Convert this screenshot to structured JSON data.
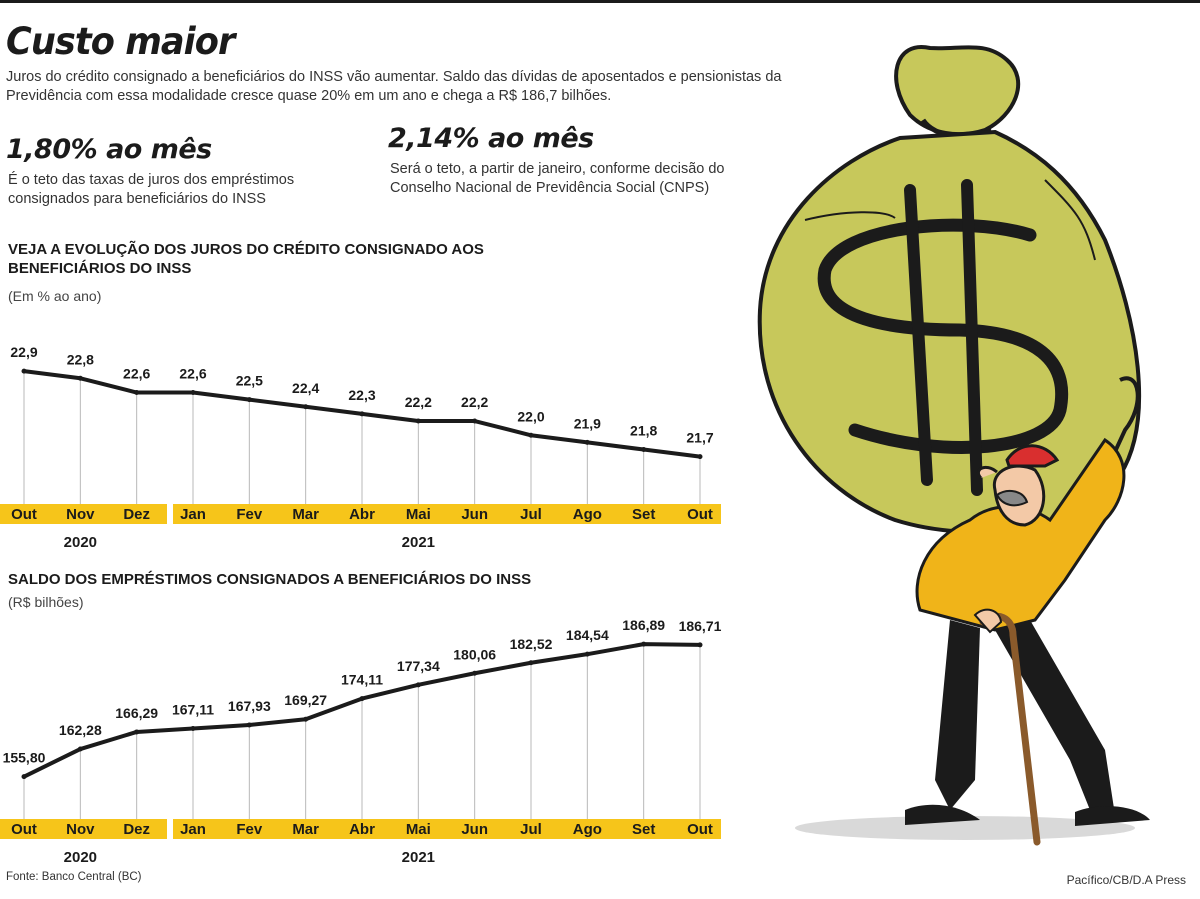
{
  "header": {
    "title": "Custo maior",
    "lead": "Juros do crédito consignado a beneficiários do INSS vão aumentar. Saldo das dívidas de aposentados e pensionistas da Previdência com essa modalidade cresce quase 20% em um ano e chega a R$ 186,7 bilhões."
  },
  "stats": [
    {
      "value": "1,80% ao mês",
      "desc": "É o teto das taxas de juros dos empréstimos consignados para beneficiários do INSS"
    },
    {
      "value": "2,14% ao mês",
      "desc": "Será o teto, a partir de janeiro, conforme decisão do Conselho Nacional de Previdência Social (CNPS)"
    }
  ],
  "colors": {
    "axis_band": "#f6c51a",
    "line": "#1b1b1b",
    "grid": "#b8b8b8",
    "bag": "#c7c85b",
    "jacket": "#f0b419",
    "cap": "#d92f2f"
  },
  "chart_data": [
    {
      "type": "line",
      "title": "VEJA A EVOLUÇÃO DOS JUROS DO CRÉDITO CONSIGNADO AOS BENEFICIÁRIOS DO INSS",
      "ylabel": "(Em % ao ano)",
      "categories": [
        "Out",
        "Nov",
        "Dez",
        "Jan",
        "Fev",
        "Mar",
        "Abr",
        "Mai",
        "Jun",
        "Jul",
        "Ago",
        "Set",
        "Out"
      ],
      "years": [
        {
          "label": "2020",
          "start": 0,
          "end": 2
        },
        {
          "label": "2021",
          "start": 3,
          "end": 12
        }
      ],
      "values": [
        22.9,
        22.8,
        22.6,
        22.6,
        22.5,
        22.4,
        22.3,
        22.2,
        22.2,
        22.0,
        21.9,
        21.8,
        21.7
      ],
      "labels": [
        "22,9",
        "22,8",
        "22,6",
        "22,6",
        "22,5",
        "22,4",
        "22,3",
        "22,2",
        "22,2",
        "22,0",
        "21,9",
        "21,8",
        "21,7"
      ],
      "ylim": [
        21.05,
        23.0
      ],
      "grid": true
    },
    {
      "type": "line",
      "title": "SALDO DOS EMPRÉSTIMOS CONSIGNADOS A BENEFICIÁRIOS DO INSS",
      "ylabel": "(R$ bilhões)",
      "categories": [
        "Out",
        "Nov",
        "Dez",
        "Jan",
        "Fev",
        "Mar",
        "Abr",
        "Mai",
        "Jun",
        "Jul",
        "Ago",
        "Set",
        "Out"
      ],
      "years": [
        {
          "label": "2020",
          "start": 0,
          "end": 2
        },
        {
          "label": "2021",
          "start": 3,
          "end": 12
        }
      ],
      "values": [
        155.8,
        162.28,
        166.29,
        167.11,
        167.93,
        169.27,
        174.11,
        177.34,
        180.06,
        182.52,
        184.54,
        186.89,
        186.71
      ],
      "labels": [
        "155,80",
        "162,28",
        "166,29",
        "167,11",
        "167,93",
        "169,27",
        "174,11",
        "177,34",
        "180,06",
        "182,52",
        "184,54",
        "186,89",
        "186,71"
      ],
      "ylim": [
        146.1,
        188.8
      ],
      "grid": true
    }
  ],
  "footer": {
    "source": "Fonte: Banco Central (BC)",
    "credit": "Pacífico/CB/D.A Press"
  }
}
